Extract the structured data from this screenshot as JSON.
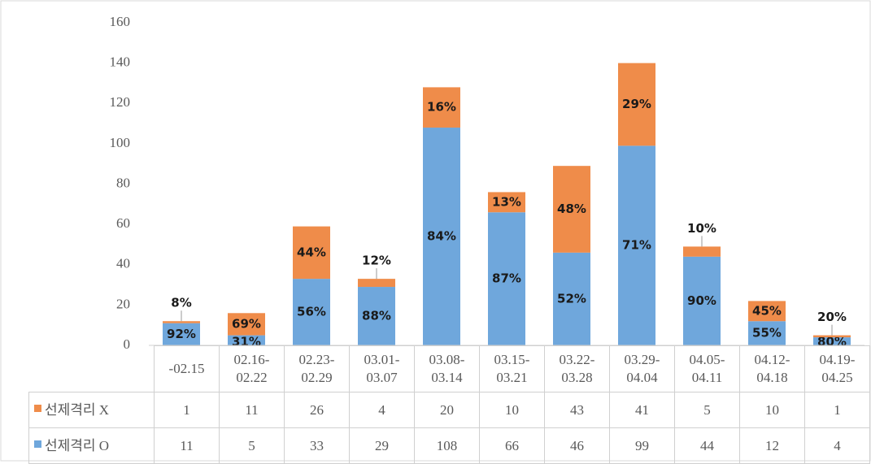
{
  "chart_data": {
    "type": "stacked_bar",
    "categories": [
      "-02.15",
      "02.16-02.22",
      "02.23-02.29",
      "03.01-03.07",
      "03.08-03.14",
      "03.15-03.21",
      "03.22-03.28",
      "03.29-04.04",
      "04.05-04.11",
      "04.12-04.18",
      "04.19-04.25"
    ],
    "series": [
      {
        "name": "선제격리 O",
        "color": "#6fa7dc",
        "values": [
          11,
          5,
          33,
          29,
          108,
          66,
          46,
          99,
          44,
          12,
          4
        ],
        "share_labels": [
          "92%",
          "31%",
          "56%",
          "88%",
          "84%",
          "87%",
          "52%",
          "71%",
          "90%",
          "55%",
          "80%"
        ]
      },
      {
        "name": "선제격리 X",
        "color": "#ef8c4a",
        "values": [
          1,
          11,
          26,
          4,
          20,
          10,
          43,
          41,
          5,
          10,
          1
        ],
        "share_labels": [
          "8%",
          "69%",
          "44%",
          "12%",
          "16%",
          "13%",
          "48%",
          "29%",
          "10%",
          "45%",
          "20%"
        ]
      }
    ],
    "ylim": [
      0,
      160
    ],
    "yticks": [
      0,
      20,
      40,
      60,
      80,
      100,
      120,
      140,
      160
    ]
  }
}
